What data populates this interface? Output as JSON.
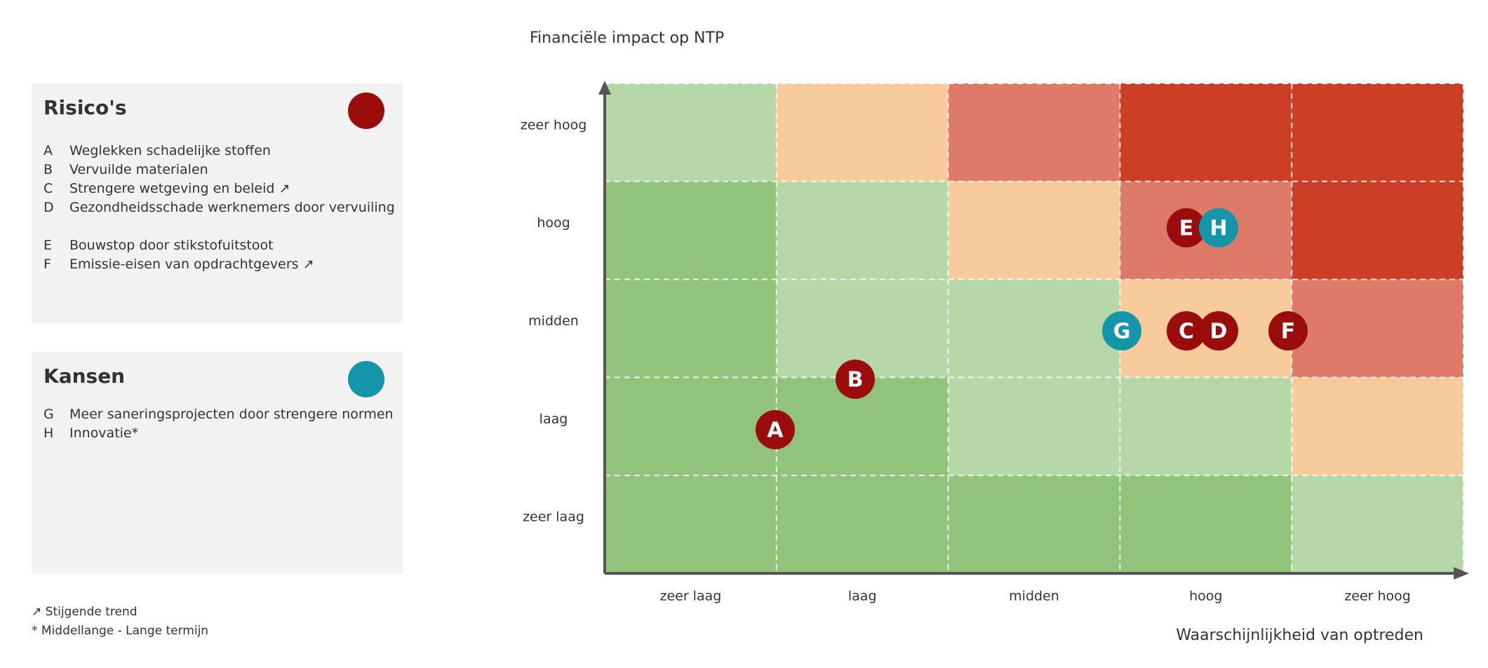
{
  "header": {
    "y_axis_title": "Financiële impact op NTP",
    "x_axis_title": "Waarschijnlijkheid van optreden"
  },
  "risks": {
    "title": "Risico's",
    "items": [
      {
        "letter": "A",
        "text": "Weglekken schadelijke stoffen"
      },
      {
        "letter": "B",
        "text": "Vervuilde materialen"
      },
      {
        "letter": "C",
        "text": "Strengere wetgeving en beleid ↗"
      },
      {
        "letter": "D",
        "text": "Gezondheidsschade werknemers door vervuiling"
      },
      {
        "letter": "E",
        "text": "Bouwstop door stikstofuitstoot"
      },
      {
        "letter": "F",
        "text": "Emissie-eisen van opdrachtgevers ↗"
      }
    ]
  },
  "opportunities": {
    "title": "Kansen",
    "items": [
      {
        "letter": "G",
        "text": "Meer saneringsprojecten door strengere normen"
      },
      {
        "letter": "H",
        "text": "Innovatie*"
      }
    ]
  },
  "matrix": {
    "y_levels": [
      "zeer hoog",
      "hoog",
      "midden",
      "laag",
      "zeer laag"
    ],
    "x_levels": [
      "zeer laag",
      "laag",
      "midden",
      "hoog",
      "zeer hoog"
    ]
  },
  "footnotes": [
    "↗ Stijgende trend",
    "* Middellange - Lange termijn"
  ]
}
